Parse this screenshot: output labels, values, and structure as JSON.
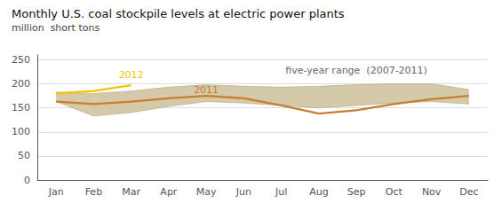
{
  "chart_data": {
    "type": "line",
    "title": "Monthly U.S. coal stockpile levels at electric power plants",
    "subtitle": "million  short tons",
    "categories": [
      "Jan",
      "Feb",
      "Mar",
      "Apr",
      "May",
      "Jun",
      "Jul",
      "Aug",
      "Sep",
      "Oct",
      "Nov",
      "Dec"
    ],
    "series": [
      {
        "color": "#c87d2f",
        "values": [
          163,
          158,
          163,
          170,
          175,
          170,
          155,
          138,
          145,
          158,
          168,
          175
        ]
      },
      {
        "color": "#f5c400",
        "values": [
          180,
          185,
          197,
          null,
          null,
          null,
          null,
          null,
          null,
          null,
          null,
          null
        ]
      }
    ],
    "range": {
      "upper": [
        183,
        180,
        185,
        193,
        198,
        195,
        193,
        195,
        198,
        200,
        200,
        188
      ],
      "lower": [
        163,
        133,
        140,
        153,
        163,
        160,
        155,
        150,
        155,
        160,
        163,
        158
      ],
      "color": "#d4c9a8",
      "edge_color": "#b8a878"
    },
    "annotations": [
      {
        "text": "2012",
        "x": 1.5,
        "y": 208,
        "color": "#f5c400"
      },
      {
        "text": "2011",
        "x": 3.5,
        "y": 177,
        "color": "#c87d2f"
      },
      {
        "text": "five-year range  (2007-2011)",
        "x": 7.5,
        "y": 218
      }
    ],
    "ylim": [
      0,
      260
    ],
    "yticks": [
      0,
      50,
      100,
      150,
      200,
      250
    ],
    "grid": true
  }
}
